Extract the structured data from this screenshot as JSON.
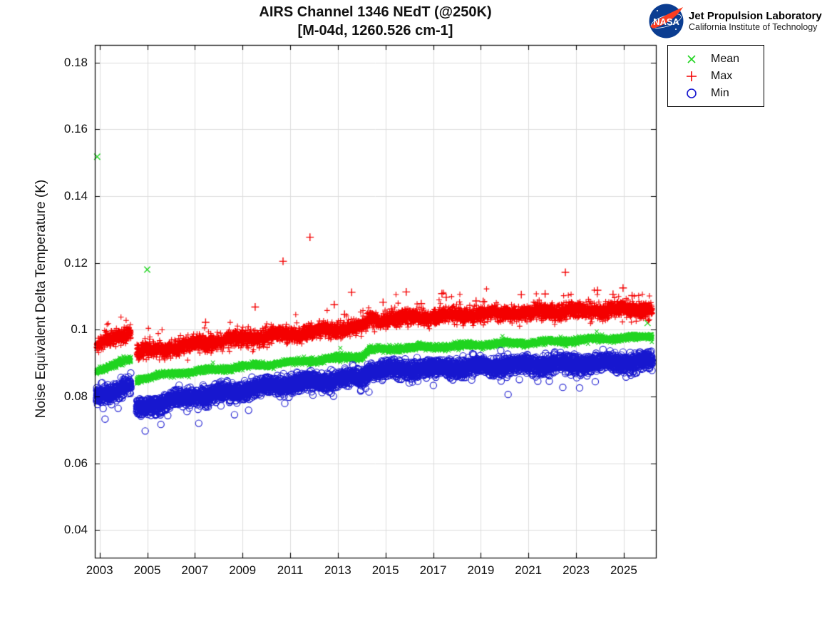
{
  "header": {
    "title_line1": "AIRS Channel 1346 NEdT (@250K)",
    "title_line2": "[M-04d, 1260.526 cm-1]"
  },
  "logo": {
    "org": "Jet Propulsion Laboratory",
    "sub": "California Institute of Technology",
    "nasa_text": "NASA",
    "meatball_blue": "#0b3d91",
    "swoosh_red": "#fc3d21"
  },
  "legend": {
    "items": [
      {
        "label": "Mean",
        "marker": "x",
        "color": "#1fd41f"
      },
      {
        "label": "Max",
        "marker": "plus",
        "color": "#f40000"
      },
      {
        "label": "Min",
        "marker": "circle",
        "color": "#1717cf"
      }
    ]
  },
  "chart_data": {
    "type": "scatter",
    "title": "AIRS Channel 1346 NEdT (@250K)",
    "subtitle": "[M-04d, 1260.526 cm-1]",
    "ylabel": "Noise Equivalent Delta Temperature (K)",
    "xlabel": "",
    "grid": true,
    "legend_position": "outside-top-right",
    "xlim": [
      2002.8,
      2026.35
    ],
    "ylim": [
      0.0317,
      0.1853
    ],
    "x_ticks": [
      2003,
      2005,
      2007,
      2009,
      2011,
      2013,
      2015,
      2017,
      2019,
      2021,
      2023,
      2025
    ],
    "y_ticks": [
      0.04,
      0.06,
      0.08,
      0.1,
      0.12,
      0.14,
      0.16,
      0.18
    ],
    "y_tick_labels": [
      "0.04",
      "0.06",
      "0.08",
      "0.1",
      "0.12",
      "0.14",
      "0.16",
      "0.18"
    ],
    "x_start": 2002.87,
    "x_end": 2026.2,
    "x_step": 0.004,
    "data_gap": [
      2004.32,
      2004.55
    ],
    "grid_color": "#dcdcdc",
    "axis_color": "#000000",
    "series": [
      {
        "name": "Mean",
        "marker": "x",
        "color": "#1fd41f",
        "trend": [
          [
            2002.87,
            0.0878
          ],
          [
            2004.32,
            0.0911
          ],
          [
            2004.55,
            0.0851
          ],
          [
            2006.0,
            0.0868
          ],
          [
            2009.0,
            0.0889
          ],
          [
            2011.5,
            0.0905
          ],
          [
            2014.05,
            0.0921
          ],
          [
            2014.3,
            0.0939
          ],
          [
            2017.0,
            0.0948
          ],
          [
            2020.0,
            0.0958
          ],
          [
            2023.0,
            0.0968
          ],
          [
            2026.2,
            0.098
          ]
        ],
        "noise_sigma": 0.00045,
        "tail_direction": 1,
        "tail_probability": 0.003,
        "tail_scale": 0.0009,
        "outliers": [
          [
            2002.9,
            0.1518
          ],
          [
            2005.0,
            0.118
          ],
          [
            2026.0,
            0.102
          ]
        ]
      },
      {
        "name": "Max",
        "marker": "plus",
        "color": "#f40000",
        "trend": [
          [
            2002.87,
            0.0952
          ],
          [
            2003.6,
            0.0973
          ],
          [
            2004.32,
            0.0999
          ],
          [
            2004.55,
            0.093
          ],
          [
            2006.0,
            0.0947
          ],
          [
            2009.0,
            0.0973
          ],
          [
            2011.5,
            0.0991
          ],
          [
            2014.05,
            0.1008
          ],
          [
            2014.3,
            0.1028
          ],
          [
            2017.0,
            0.104
          ],
          [
            2020.0,
            0.1049
          ],
          [
            2023.0,
            0.1057
          ],
          [
            2026.2,
            0.1063
          ]
        ],
        "noise_sigma": 0.0011,
        "tail_direction": 1,
        "tail_probability": 0.035,
        "tail_scale": 0.0018,
        "outliers": [
          [
            2007.45,
            0.1022
          ],
          [
            2009.53,
            0.1068
          ],
          [
            2010.7,
            0.1205
          ],
          [
            2011.83,
            0.1277
          ],
          [
            2012.85,
            0.1075
          ],
          [
            2013.28,
            0.1046
          ],
          [
            2013.58,
            0.1112
          ],
          [
            2014.9,
            0.1082
          ],
          [
            2015.25,
            0.1062
          ],
          [
            2015.87,
            0.1113
          ],
          [
            2016.5,
            0.1078
          ],
          [
            2017.37,
            0.1108
          ],
          [
            2017.55,
            0.1097
          ],
          [
            2018.8,
            0.1086
          ],
          [
            2019.1,
            0.1084
          ],
          [
            2020.7,
            0.1105
          ],
          [
            2021.7,
            0.1107
          ],
          [
            2022.55,
            0.1172
          ],
          [
            2023.9,
            0.1118
          ],
          [
            2024.55,
            0.1106
          ],
          [
            2024.97,
            0.1125
          ],
          [
            2025.35,
            0.1102
          ]
        ]
      },
      {
        "name": "Min",
        "marker": "circle",
        "color": "#1717cf",
        "trend": [
          [
            2002.87,
            0.0799
          ],
          [
            2004.32,
            0.0837
          ],
          [
            2004.55,
            0.0764
          ],
          [
            2006.0,
            0.0789
          ],
          [
            2009.0,
            0.0821
          ],
          [
            2011.5,
            0.0841
          ],
          [
            2014.05,
            0.0859
          ],
          [
            2014.3,
            0.0877
          ],
          [
            2017.0,
            0.0885
          ],
          [
            2020.0,
            0.0893
          ],
          [
            2023.0,
            0.0899
          ],
          [
            2026.2,
            0.0906
          ]
        ],
        "noise_sigma": 0.0012,
        "tail_direction": -1,
        "tail_probability": 0.04,
        "tail_scale": 0.0016,
        "outliers": []
      }
    ]
  }
}
